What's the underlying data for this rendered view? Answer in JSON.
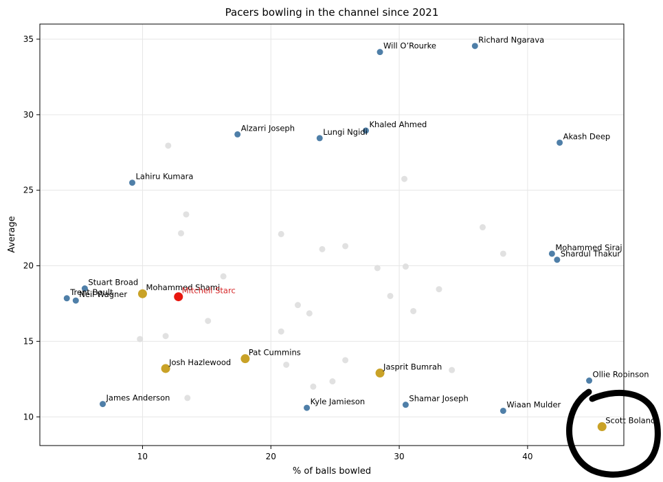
{
  "chart_data": {
    "type": "scatter",
    "title": "Pacers bowling in the channel since 2021",
    "xlabel": "% of balls bowled",
    "ylabel": "Average",
    "xlim": [
      2,
      47.5
    ],
    "ylim": [
      8.1,
      36.0
    ],
    "xticks": [
      10,
      20,
      30,
      40
    ],
    "yticks": [
      10,
      15,
      20,
      25,
      30,
      35
    ],
    "grid": true,
    "colors": {
      "named": "#4f7fa8",
      "australia": "#c9a227",
      "highlight": "#e8170f",
      "background": "#dcdcdc",
      "highlight_label": "#d62728",
      "annotation": "#000000"
    },
    "points": [
      {
        "label": "Richard Ngarava",
        "x": 35.9,
        "y": 34.55,
        "group": "named"
      },
      {
        "label": "Will O’Rourke",
        "x": 28.5,
        "y": 34.15,
        "group": "named"
      },
      {
        "label": "Khaled Ahmed",
        "x": 27.4,
        "y": 28.95,
        "group": "named"
      },
      {
        "label": "Alzarri Joseph",
        "x": 17.4,
        "y": 28.7,
        "group": "named"
      },
      {
        "label": "Lungi Ngidi",
        "x": 23.8,
        "y": 28.45,
        "group": "named"
      },
      {
        "label": "Akash Deep",
        "x": 42.5,
        "y": 28.15,
        "group": "named"
      },
      {
        "label": "Lahiru Kumara",
        "x": 9.2,
        "y": 25.5,
        "group": "named"
      },
      {
        "label": "Mohammed Siraj",
        "x": 41.9,
        "y": 20.8,
        "group": "named"
      },
      {
        "label": "Shardul Thakur",
        "x": 42.3,
        "y": 20.4,
        "group": "named"
      },
      {
        "label": "Stuart Broad",
        "x": 5.5,
        "y": 18.5,
        "group": "named"
      },
      {
        "label": "Trent Boult",
        "x": 4.1,
        "y": 17.85,
        "group": "named"
      },
      {
        "label": "Neil Wagner",
        "x": 4.8,
        "y": 17.7,
        "group": "named"
      },
      {
        "label": "Ollie Robinson",
        "x": 44.8,
        "y": 12.4,
        "group": "named"
      },
      {
        "label": "James Anderson",
        "x": 6.9,
        "y": 10.85,
        "group": "named"
      },
      {
        "label": "Kyle Jamieson",
        "x": 22.8,
        "y": 10.6,
        "group": "named"
      },
      {
        "label": "Shamar Joseph",
        "x": 30.5,
        "y": 10.8,
        "group": "named"
      },
      {
        "label": "Wiaan Mulder",
        "x": 38.1,
        "y": 10.4,
        "group": "named"
      },
      {
        "label": "Mohammed Shami",
        "x": 10.0,
        "y": 18.15,
        "group": "australia"
      },
      {
        "label": "Pat Cummins",
        "x": 18.0,
        "y": 13.85,
        "group": "australia"
      },
      {
        "label": "Josh Hazlewood",
        "x": 11.8,
        "y": 13.2,
        "group": "australia"
      },
      {
        "label": "Jasprit Bumrah",
        "x": 28.5,
        "y": 12.9,
        "group": "australia"
      },
      {
        "label": "Scott Boland",
        "x": 45.8,
        "y": 9.35,
        "group": "australia"
      },
      {
        "label": "Mitchell Starc",
        "x": 12.8,
        "y": 17.95,
        "group": "highlight"
      }
    ],
    "background_points": [
      {
        "x": 12.0,
        "y": 27.95
      },
      {
        "x": 30.4,
        "y": 25.75
      },
      {
        "x": 13.4,
        "y": 23.4
      },
      {
        "x": 13.0,
        "y": 22.15
      },
      {
        "x": 20.8,
        "y": 22.1
      },
      {
        "x": 36.5,
        "y": 22.55
      },
      {
        "x": 24.0,
        "y": 21.1
      },
      {
        "x": 25.8,
        "y": 21.3
      },
      {
        "x": 38.1,
        "y": 20.8
      },
      {
        "x": 28.3,
        "y": 19.85
      },
      {
        "x": 30.5,
        "y": 19.95
      },
      {
        "x": 16.3,
        "y": 19.3
      },
      {
        "x": 33.1,
        "y": 18.45
      },
      {
        "x": 29.3,
        "y": 18.0
      },
      {
        "x": 22.1,
        "y": 17.4
      },
      {
        "x": 31.1,
        "y": 17.0
      },
      {
        "x": 23.0,
        "y": 16.85
      },
      {
        "x": 15.1,
        "y": 16.35
      },
      {
        "x": 20.8,
        "y": 15.65
      },
      {
        "x": 11.8,
        "y": 15.35
      },
      {
        "x": 9.8,
        "y": 15.15
      },
      {
        "x": 25.8,
        "y": 13.75
      },
      {
        "x": 21.2,
        "y": 13.45
      },
      {
        "x": 34.1,
        "y": 13.1
      },
      {
        "x": 24.8,
        "y": 12.35
      },
      {
        "x": 23.3,
        "y": 12.0
      },
      {
        "x": 13.5,
        "y": 11.25
      }
    ],
    "annotation": {
      "type": "hand-drawn circle",
      "around": "Scott Boland"
    }
  }
}
